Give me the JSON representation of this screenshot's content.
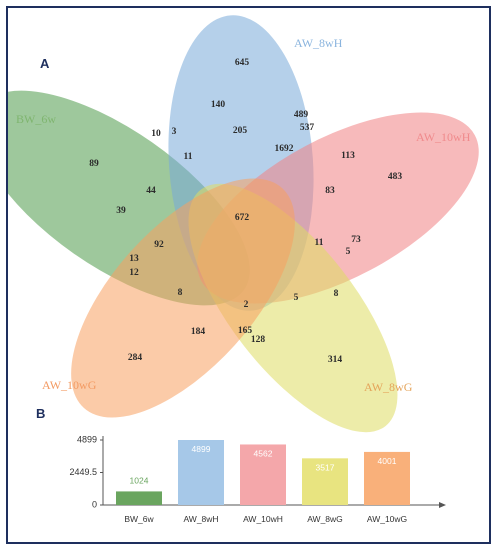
{
  "panel_a": {
    "letter": "A"
  },
  "panel_b": {
    "letter": "B"
  },
  "chart_data": [
    {
      "type": "venn",
      "sets": [
        {
          "name": "BW_6w",
          "color": "#4f9a4a",
          "label_color": "#7fb56f"
        },
        {
          "name": "AW_8wH",
          "color": "#78a9d8",
          "label_color": "#8ab4de"
        },
        {
          "name": "AW_10wH",
          "color": "#f08184",
          "label_color": "#f08a8c"
        },
        {
          "name": "AW_8wG",
          "color": "#dedd62",
          "label_color": "#e4a45a"
        },
        {
          "name": "AW_10wG",
          "color": "#f7a160",
          "label_color": "#f39a62"
        }
      ],
      "regions": [
        "645",
        "140",
        "489",
        "537",
        "205",
        "1692",
        "113",
        "483",
        "10",
        "3",
        "11",
        "89",
        "44",
        "39",
        "83",
        "672",
        "73",
        "11",
        "5",
        "92",
        "13",
        "12",
        "8",
        "8",
        "2",
        "5",
        "184",
        "165",
        "128",
        "284",
        "314"
      ]
    },
    {
      "type": "bar",
      "categories": [
        "BW_6w",
        "AW_8wH",
        "AW_10wH",
        "AW_8wG",
        "AW_10wG"
      ],
      "values": [
        1024,
        4899,
        4562,
        3517,
        4001
      ],
      "colors": [
        "#6aa55f",
        "#a6c8e8",
        "#f4a7aa",
        "#e8e480",
        "#f9b07a"
      ],
      "value_label_colors": [
        "#6aa55f",
        "#ffffff",
        "#ffffff",
        "#ffffff",
        "#ffffff"
      ],
      "yticks": [
        "4899",
        "2449.5",
        "0"
      ],
      "ylim": [
        0,
        4899
      ]
    }
  ]
}
